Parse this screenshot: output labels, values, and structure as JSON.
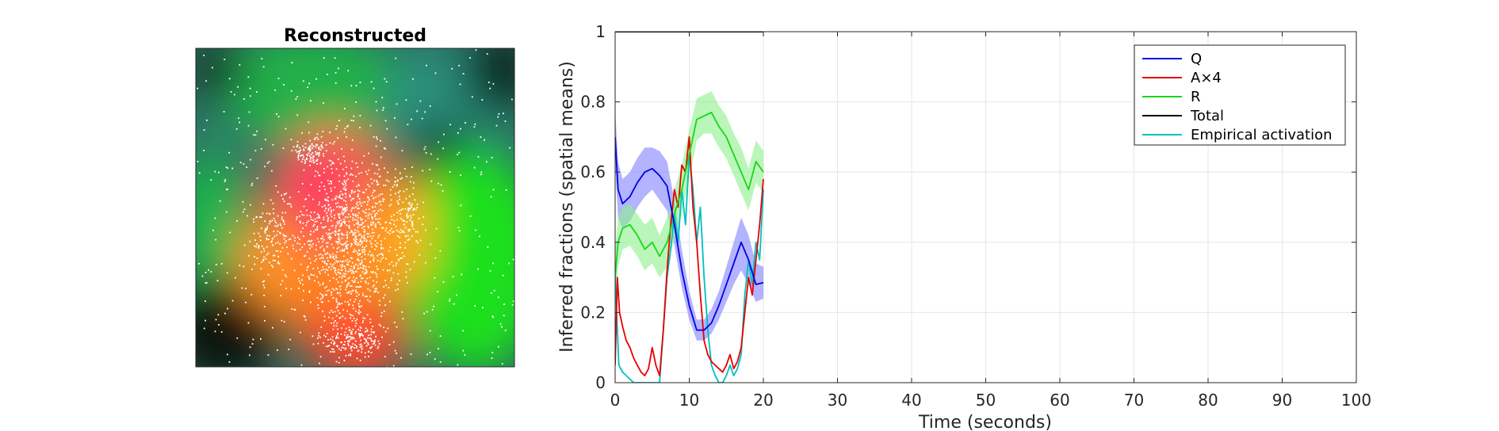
{
  "chart_data": [
    {
      "type": "heatmap",
      "title": "Reconstructed",
      "axes_visible": false,
      "colormap_regions": [
        {
          "label": "teal",
          "color": "#2f7f6f"
        },
        {
          "label": "green",
          "color": "#19d619"
        },
        {
          "label": "red-pink",
          "color": "#ff4d5a"
        },
        {
          "label": "orange",
          "color": "#ff8c1a"
        },
        {
          "label": "dark",
          "color": "#0e1a14"
        }
      ],
      "overlay": "white point scatter (activation events)"
    },
    {
      "type": "line",
      "title": "",
      "xlabel": "Time (seconds)",
      "ylabel": "Inferred fractions (spatial means)",
      "xlim": [
        0,
        100
      ],
      "ylim": [
        0,
        1
      ],
      "xticks": [
        0,
        10,
        20,
        30,
        40,
        50,
        60,
        70,
        80,
        90,
        100
      ],
      "yticks": [
        0,
        0.2,
        0.4,
        0.6,
        0.8,
        1
      ],
      "ytick_labels": [
        "0",
        "0.2",
        "0.4",
        "0.6",
        "0.8",
        "1"
      ],
      "grid": true,
      "legend_position": "top-right",
      "series": [
        {
          "name": "Q",
          "color": "#0000e6",
          "band_color": "#8080ff",
          "x": [
            0,
            0.4,
            1,
            2,
            3,
            4,
            5,
            6,
            7,
            8,
            9,
            10,
            11,
            12,
            13,
            14,
            15,
            16,
            17,
            18,
            19,
            20
          ],
          "y": [
            0.7,
            0.55,
            0.51,
            0.53,
            0.57,
            0.6,
            0.61,
            0.59,
            0.56,
            0.45,
            0.32,
            0.22,
            0.15,
            0.15,
            0.17,
            0.22,
            0.28,
            0.34,
            0.4,
            0.35,
            0.28,
            0.285
          ],
          "lower": [
            0.62,
            0.47,
            0.44,
            0.46,
            0.5,
            0.53,
            0.55,
            0.52,
            0.49,
            0.39,
            0.27,
            0.18,
            0.12,
            0.12,
            0.14,
            0.18,
            0.23,
            0.28,
            0.32,
            0.28,
            0.23,
            0.24
          ],
          "upper": [
            0.78,
            0.63,
            0.58,
            0.6,
            0.64,
            0.67,
            0.67,
            0.66,
            0.63,
            0.52,
            0.38,
            0.26,
            0.18,
            0.18,
            0.21,
            0.26,
            0.33,
            0.4,
            0.47,
            0.42,
            0.34,
            0.33
          ]
        },
        {
          "name": "A×4",
          "color": "#e60000",
          "x": [
            0,
            0.3,
            0.6,
            1,
            1.5,
            2,
            2.5,
            3,
            3.5,
            4,
            4.5,
            5,
            5.5,
            6,
            6.5,
            7,
            7.5,
            8,
            8.5,
            9,
            9.5,
            10,
            10.5,
            11,
            11.5,
            12,
            12.5,
            13,
            13.5,
            14,
            14.5,
            15,
            15.5,
            16,
            16.5,
            17,
            17.5,
            18,
            18.5,
            19,
            19.5,
            20
          ],
          "y": [
            0.05,
            0.3,
            0.2,
            0.16,
            0.12,
            0.1,
            0.07,
            0.05,
            0.03,
            0.02,
            0.04,
            0.1,
            0.05,
            0.02,
            0.15,
            0.32,
            0.45,
            0.55,
            0.5,
            0.62,
            0.6,
            0.7,
            0.5,
            0.4,
            0.25,
            0.12,
            0.08,
            0.06,
            0.05,
            0.04,
            0.03,
            0.05,
            0.08,
            0.04,
            0.06,
            0.1,
            0.2,
            0.3,
            0.25,
            0.35,
            0.45,
            0.58
          ]
        },
        {
          "name": "R",
          "color": "#19d619",
          "band_color": "#8cf08c",
          "x": [
            0,
            0.4,
            1,
            2,
            3,
            4,
            5,
            6,
            7,
            8,
            9,
            10,
            11,
            12,
            13,
            14,
            15,
            16,
            17,
            18,
            19,
            20
          ],
          "y": [
            0.3,
            0.4,
            0.44,
            0.45,
            0.42,
            0.38,
            0.4,
            0.36,
            0.4,
            0.48,
            0.55,
            0.65,
            0.75,
            0.76,
            0.77,
            0.73,
            0.7,
            0.65,
            0.6,
            0.55,
            0.63,
            0.6
          ],
          "lower": [
            0.22,
            0.33,
            0.38,
            0.39,
            0.36,
            0.32,
            0.34,
            0.3,
            0.33,
            0.41,
            0.48,
            0.58,
            0.69,
            0.71,
            0.71,
            0.67,
            0.64,
            0.59,
            0.54,
            0.49,
            0.57,
            0.54
          ],
          "upper": [
            0.38,
            0.47,
            0.5,
            0.51,
            0.48,
            0.45,
            0.47,
            0.42,
            0.47,
            0.55,
            0.62,
            0.72,
            0.81,
            0.82,
            0.83,
            0.79,
            0.76,
            0.71,
            0.67,
            0.61,
            0.69,
            0.66
          ]
        },
        {
          "name": "Total",
          "color": "#000000",
          "x": [
            0,
            20
          ],
          "y": [
            1,
            1
          ]
        },
        {
          "name": "Empirical activation",
          "color": "#00bfbf",
          "x": [
            0,
            0.5,
            1,
            1.5,
            2,
            2.5,
            3,
            3.5,
            4,
            4.5,
            5,
            5.5,
            6,
            6.5,
            7,
            7.5,
            8,
            8.5,
            9,
            9.5,
            10,
            10.5,
            11,
            11.5,
            12,
            12.5,
            13,
            13.5,
            14,
            14.5,
            15,
            15.5,
            16,
            16.5,
            17,
            17.5,
            18,
            18.5,
            19,
            19.5,
            20
          ],
          "y": [
            0.3,
            0.05,
            0.03,
            0.02,
            0.01,
            0.0,
            0.0,
            0.0,
            0.0,
            0.0,
            0.0,
            0.0,
            0.0,
            0.15,
            0.3,
            0.38,
            0.48,
            0.4,
            0.55,
            0.45,
            0.65,
            0.55,
            0.4,
            0.5,
            0.3,
            0.15,
            0.05,
            0.02,
            0.0,
            0.0,
            0.02,
            0.05,
            0.02,
            0.04,
            0.08,
            0.25,
            0.35,
            0.28,
            0.4,
            0.35,
            0.55
          ]
        }
      ]
    }
  ]
}
